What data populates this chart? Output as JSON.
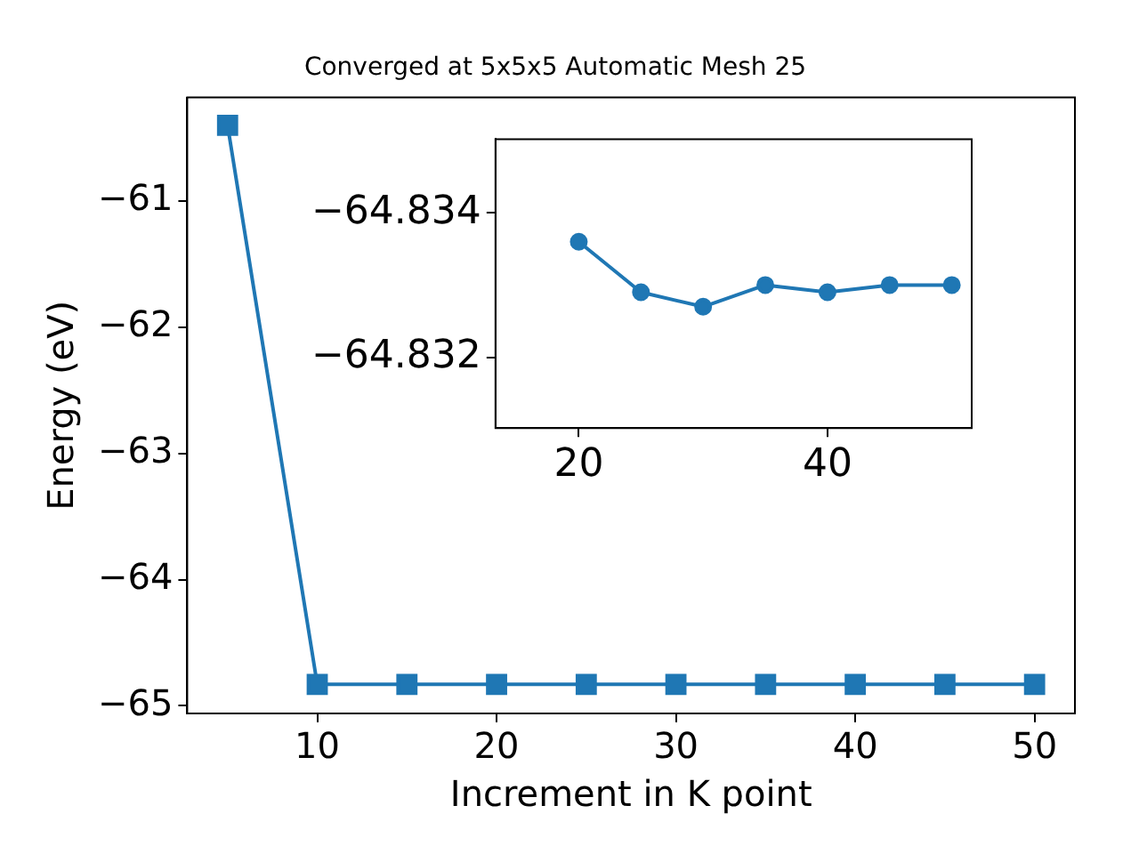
{
  "chart_data": [
    {
      "type": "line",
      "title": "Converged at 5x5x5 Automatic Mesh 25",
      "xlabel": "Increment in K point",
      "ylabel": "Energy (eV)",
      "x": [
        5,
        10,
        15,
        20,
        25,
        30,
        35,
        40,
        45,
        50
      ],
      "series": [
        {
          "color": "#1f77b4",
          "values": [
            -60.4,
            -64.83,
            -64.83,
            -64.83,
            -64.83,
            -64.83,
            -64.83,
            -64.83,
            -64.83,
            -64.83
          ]
        }
      ],
      "xlim": [
        2.75,
        52.25
      ],
      "xticks": [
        10,
        20,
        30,
        40,
        50
      ],
      "ylim": [
        -65.06,
        -60.18
      ],
      "yticks": [
        {
          "value": -65,
          "label": "−65"
        },
        {
          "value": -64,
          "label": "−64"
        },
        {
          "value": -63,
          "label": "−63"
        },
        {
          "value": -62,
          "label": "−62"
        },
        {
          "value": -61,
          "label": "−61"
        }
      ],
      "marker": "square",
      "grid": false,
      "legend": false
    },
    {
      "type": "line",
      "x": [
        20,
        25,
        30,
        35,
        40,
        45,
        50
      ],
      "series": [
        {
          "color": "#1f77b4",
          "values": [
            -64.8336,
            -64.8329,
            -64.8327,
            -64.833,
            -64.8329,
            -64.833,
            -64.833
          ]
        }
      ],
      "xlim": [
        13.3,
        51.6
      ],
      "xticks": [
        20,
        40
      ],
      "ylim": [
        -64.83102,
        -64.83502
      ],
      "yticks": [
        {
          "value": -64.834,
          "label": "−64.834"
        },
        {
          "value": -64.832,
          "label": "−64.832"
        }
      ],
      "marker": "circle",
      "grid": false,
      "legend": false
    }
  ]
}
